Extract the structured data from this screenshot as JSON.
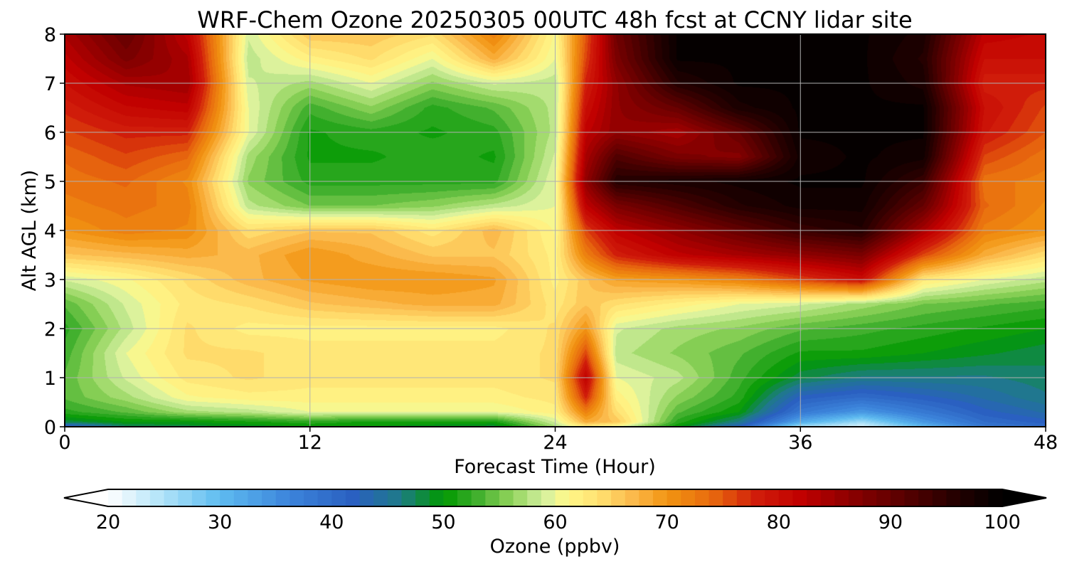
{
  "chart_data": {
    "type": "heatmap",
    "title": "WRF-Chem Ozone  20250305 00UTC 48h fcst at CCNY lidar site",
    "xlabel": "Forecast Time (Hour)",
    "ylabel": "Alt AGL (km)",
    "xlim": [
      0,
      48
    ],
    "ylim": [
      0,
      8
    ],
    "xticks": [
      0,
      12,
      24,
      36,
      48
    ],
    "yticks": [
      0,
      1,
      2,
      3,
      4,
      5,
      6,
      7,
      8
    ],
    "grid": true,
    "colorbar": {
      "label": "Ozone  (ppbv)",
      "min": 20,
      "max": 100,
      "ticks": [
        20,
        30,
        40,
        50,
        60,
        70,
        80,
        90,
        100
      ],
      "extend": "both",
      "stops": [
        {
          "v": 20,
          "c": "#ffffff"
        },
        {
          "v": 25,
          "c": "#aee2f8"
        },
        {
          "v": 30,
          "c": "#5ebcf0"
        },
        {
          "v": 36,
          "c": "#3d86dc"
        },
        {
          "v": 42,
          "c": "#2a5fc0"
        },
        {
          "v": 46,
          "c": "#1f7a8a"
        },
        {
          "v": 50,
          "c": "#009900"
        },
        {
          "v": 53,
          "c": "#3fae2c"
        },
        {
          "v": 56,
          "c": "#8fd25a"
        },
        {
          "v": 59,
          "c": "#d4f0a0"
        },
        {
          "v": 61,
          "c": "#fff88a"
        },
        {
          "v": 64,
          "c": "#ffe070"
        },
        {
          "v": 67,
          "c": "#fbb84a"
        },
        {
          "v": 70,
          "c": "#f29512"
        },
        {
          "v": 74,
          "c": "#e86a0e"
        },
        {
          "v": 78,
          "c": "#d11d0a"
        },
        {
          "v": 82,
          "c": "#c00000"
        },
        {
          "v": 86,
          "c": "#900000"
        },
        {
          "v": 91,
          "c": "#5a0000"
        },
        {
          "v": 96,
          "c": "#220000"
        },
        {
          "v": 100,
          "c": "#000000"
        }
      ]
    },
    "x": [
      0,
      3,
      6,
      9,
      12,
      15,
      18,
      21,
      24,
      25.5,
      27,
      30,
      33,
      36,
      39,
      42,
      45,
      48
    ],
    "y": [
      0,
      0.1,
      0.3,
      0.6,
      1,
      1.5,
      2,
      2.5,
      3,
      3.5,
      4,
      4.5,
      5,
      5.5,
      6,
      6.5,
      7,
      7.5,
      8
    ],
    "z": [
      [
        40,
        47,
        48,
        49,
        50,
        50,
        49,
        48,
        57,
        62,
        60,
        50,
        42,
        25,
        22,
        30,
        38,
        40
      ],
      [
        48,
        50,
        50,
        51,
        52,
        51,
        51,
        51,
        59,
        68,
        66,
        52,
        46,
        32,
        26,
        34,
        40,
        42
      ],
      [
        52,
        54,
        57,
        58,
        60,
        60,
        60,
        60,
        62,
        72,
        64,
        54,
        50,
        38,
        34,
        38,
        42,
        44
      ],
      [
        54,
        57,
        61,
        62,
        62,
        62,
        62,
        62,
        63,
        78,
        62,
        56,
        52,
        42,
        40,
        42,
        44,
        46
      ],
      [
        54,
        59,
        63,
        64,
        63,
        63,
        63,
        63,
        64,
        82,
        60,
        58,
        53,
        48,
        46,
        46,
        46,
        47
      ],
      [
        53,
        60,
        64,
        64,
        63,
        63,
        63,
        63,
        64,
        76,
        58,
        56,
        54,
        51,
        51,
        50,
        49,
        48
      ],
      [
        52,
        58,
        64,
        62,
        62,
        62,
        62,
        62,
        64,
        70,
        59,
        57,
        56,
        54,
        53,
        52,
        51,
        50
      ],
      [
        54,
        59,
        63,
        64,
        66,
        67,
        68,
        68,
        63,
        66,
        64,
        62,
        60,
        59,
        57,
        55,
        54,
        53
      ],
      [
        59,
        61,
        64,
        67,
        69,
        70,
        70,
        69,
        62,
        66,
        69,
        70,
        72,
        76,
        80,
        63,
        60,
        58
      ],
      [
        66,
        67,
        68,
        67,
        70,
        68,
        66,
        66,
        62,
        72,
        78,
        82,
        84,
        86,
        88,
        76,
        68,
        64
      ],
      [
        70,
        72,
        71,
        64,
        66,
        66,
        63,
        67,
        61,
        76,
        82,
        86,
        90,
        94,
        96,
        84,
        72,
        70
      ],
      [
        72,
        73,
        72,
        58,
        55,
        55,
        56,
        58,
        60,
        82,
        88,
        92,
        96,
        98,
        98,
        90,
        74,
        71
      ],
      [
        73,
        74,
        71,
        56,
        52,
        52,
        52,
        52,
        60,
        86,
        96,
        97,
        98,
        99,
        99,
        94,
        73,
        72
      ],
      [
        74,
        76,
        74,
        57,
        51,
        51,
        52,
        51,
        59,
        84,
        92,
        88,
        87,
        98,
        99,
        98,
        76,
        73
      ],
      [
        76,
        78,
        78,
        60,
        51,
        52,
        51,
        52,
        58,
        82,
        86,
        84,
        90,
        99,
        99,
        99,
        79,
        75
      ],
      [
        78,
        81,
        82,
        60,
        53,
        56,
        52,
        54,
        58,
        80,
        86,
        90,
        97,
        99,
        99,
        99,
        80,
        76
      ],
      [
        80,
        84,
        85,
        59,
        57,
        60,
        56,
        59,
        58,
        78,
        86,
        96,
        99,
        99,
        99,
        97,
        78,
        78
      ],
      [
        82,
        88,
        84,
        58,
        62,
        64,
        60,
        68,
        60,
        76,
        88,
        99,
        99,
        99,
        99,
        96,
        80,
        80
      ],
      [
        84,
        90,
        82,
        59,
        66,
        66,
        64,
        72,
        61,
        75,
        89,
        99,
        99,
        99,
        99,
        97,
        82,
        81
      ]
    ]
  }
}
